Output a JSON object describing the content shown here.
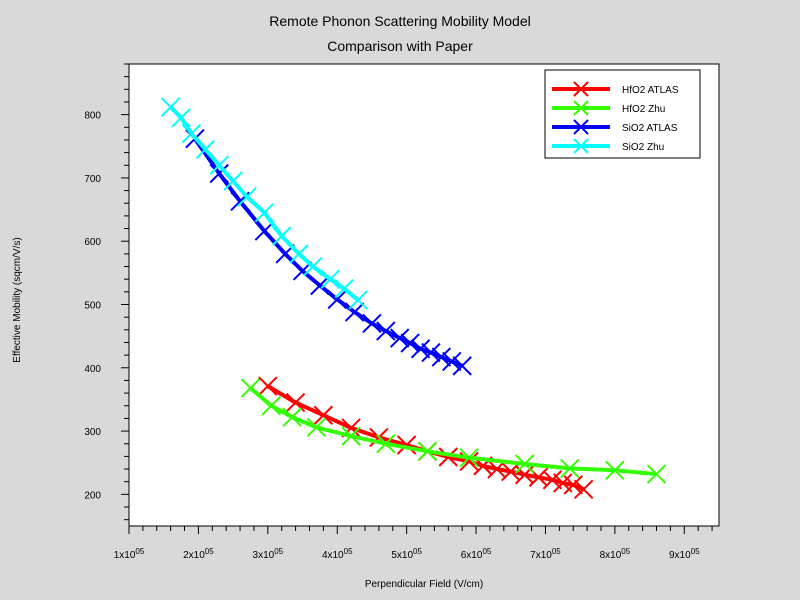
{
  "chart_data": {
    "type": "line",
    "title": "Remote Phonon Scattering Mobility Model",
    "subtitle": "Comparison with Paper",
    "xlabel": "Perpendicular Field (V/cm)",
    "ylabel": "Effective Mobility (sqcm/V/s)",
    "xlim": [
      100000,
      950000
    ],
    "ylim": [
      150,
      880
    ],
    "x_tick_values": [
      100000,
      200000,
      300000,
      400000,
      500000,
      600000,
      700000,
      800000,
      900000
    ],
    "x_tick_mantissas": [
      "1",
      "2",
      "3",
      "4",
      "5",
      "6",
      "7",
      "8",
      "9"
    ],
    "x_tick_times": "x10",
    "x_tick_exponent": "05",
    "y_ticks": [
      200,
      300,
      400,
      500,
      600,
      700,
      800
    ],
    "grid": false,
    "legend_position": "top-right",
    "marker": "x",
    "series": [
      {
        "name": "HfO2 ATLAS",
        "color": "#ff0000",
        "x": [
          300000,
          340000,
          380000,
          420000,
          460000,
          500000,
          530000,
          560000,
          590000,
          610000,
          630000,
          650000,
          670000,
          690000,
          710000,
          725000,
          740000,
          755000
        ],
        "y": [
          371,
          345,
          325,
          305,
          290,
          278,
          268,
          259,
          252,
          245,
          240,
          236,
          231,
          227,
          223,
          218,
          215,
          208
        ]
      },
      {
        "name": "HfO2 Zhu",
        "color": "#33ff00",
        "x": [
          275000,
          305000,
          335000,
          370000,
          420000,
          470000,
          530000,
          590000,
          670000,
          735000,
          800000,
          860000
        ],
        "y": [
          368,
          340,
          322,
          306,
          292,
          280,
          268,
          258,
          248,
          241,
          238,
          232
        ]
      },
      {
        "name": "SiO2 ATLAS",
        "color": "#0000ff",
        "x": [
          195000,
          230000,
          260000,
          295000,
          325000,
          350000,
          375000,
          400000,
          425000,
          450000,
          470000,
          490000,
          505000,
          520000,
          535000,
          550000,
          565000,
          580000
        ],
        "y": [
          762,
          707,
          663,
          616,
          580,
          553,
          530,
          508,
          488,
          470,
          458,
          447,
          439,
          430,
          424,
          417,
          410,
          403
        ]
      },
      {
        "name": "SiO2 Zhu",
        "color": "#00ffff",
        "x": [
          160000,
          175000,
          190000,
          210000,
          230000,
          250000,
          270000,
          295000,
          320000,
          345000,
          365000,
          390000,
          410000,
          430000
        ],
        "y": [
          812,
          795,
          770,
          745,
          720,
          695,
          670,
          645,
          608,
          580,
          560,
          540,
          525,
          507
        ]
      }
    ]
  }
}
